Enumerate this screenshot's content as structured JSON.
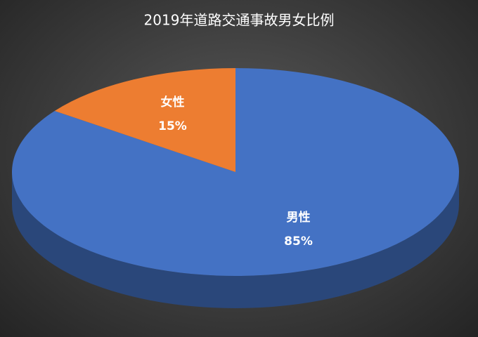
{
  "chart_data": {
    "type": "pie",
    "title": "2019年道路交通事故男女比例",
    "categories": [
      "男性",
      "女性"
    ],
    "values": [
      85,
      15
    ],
    "value_labels": [
      "85%",
      "15%"
    ],
    "colors": [
      "#4472c4",
      "#ed7d31"
    ]
  }
}
